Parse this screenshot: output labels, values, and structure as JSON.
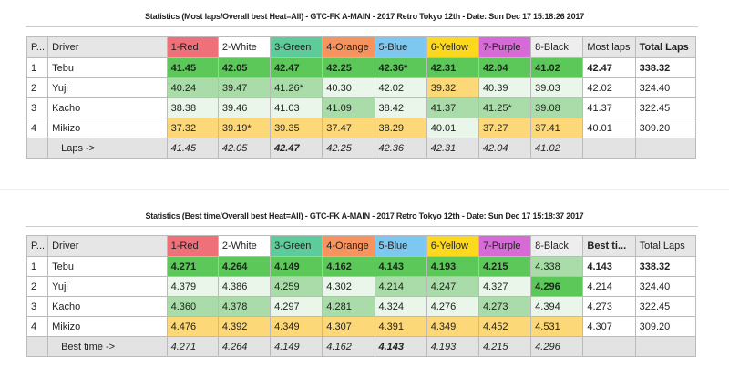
{
  "colors": {
    "red": "#f0707a",
    "white": "#ffffff",
    "green": "#5ecb9a",
    "orange": "#f7935e",
    "blue": "#7cc8f0",
    "yellow": "#fcd81e",
    "purple": "#d86ad8",
    "black": "#eeeeee"
  },
  "lanes": [
    "1-Red",
    "2-White",
    "3-Green",
    "4-Orange",
    "5-Blue",
    "6-Yellow",
    "7-Purple",
    "8-Black"
  ],
  "laneKeys": [
    "red",
    "white",
    "green",
    "orange",
    "blue",
    "yellow",
    "purple",
    "black"
  ],
  "tables": [
    {
      "title": "Statistics (Most laps/Overall best Heat=All) - GTC-FK A-MAIN - 2017 Retro Tokyo 12th - Date: Sun Dec 17 15:18:26 2017",
      "headers": {
        "pos": "P...",
        "driver": "Driver",
        "best": "Most laps",
        "total": "Total Laps"
      },
      "rows": [
        {
          "pos": "1",
          "driver": "Tebu",
          "cells": [
            "41.45",
            "42.05",
            "42.47",
            "42.25",
            "42.36*",
            "42.31",
            "42.04",
            "41.02"
          ],
          "shade": [
            "G",
            "G",
            "G",
            "G",
            "G",
            "G",
            "G",
            "G"
          ],
          "best": "42.47",
          "total": "338.32",
          "bold": true
        },
        {
          "pos": "2",
          "driver": "Yuji",
          "cells": [
            "40.24",
            "39.47",
            "41.26*",
            "40.30",
            "42.02",
            "39.32",
            "40.39",
            "39.03"
          ],
          "shade": [
            "m",
            "m",
            "m",
            "l",
            "l",
            "y",
            "l",
            "l"
          ],
          "best": "42.02",
          "total": "324.40"
        },
        {
          "pos": "3",
          "driver": "Kacho",
          "cells": [
            "38.38",
            "39.46",
            "41.03",
            "41.09",
            "38.42",
            "41.37",
            "41.25*",
            "39.08"
          ],
          "shade": [
            "l",
            "l",
            "l",
            "m",
            "l",
            "m",
            "m",
            "m"
          ],
          "best": "41.37",
          "total": "322.45"
        },
        {
          "pos": "4",
          "driver": "Mikizo",
          "cells": [
            "37.32",
            "39.19*",
            "39.35",
            "37.47",
            "38.29",
            "40.01",
            "37.27",
            "37.41"
          ],
          "shade": [
            "y",
            "y",
            "y",
            "y",
            "y",
            "l",
            "y",
            "y"
          ],
          "best": "40.01",
          "total": "309.20"
        }
      ],
      "footer": {
        "label": "Laps ->",
        "cells": [
          "41.45",
          "42.05",
          "42.47",
          "42.25",
          "42.36",
          "42.31",
          "42.04",
          "41.02"
        ],
        "boldIndex": 2
      },
      "totalBold": true,
      "bestBold": false
    },
    {
      "title": "Statistics (Best time/Overall best Heat=All) - GTC-FK A-MAIN - 2017 Retro Tokyo 12th - Date: Sun Dec 17 15:18:37 2017",
      "headers": {
        "pos": "P...",
        "driver": "Driver",
        "best": "Best ti...",
        "total": "Total Laps"
      },
      "rows": [
        {
          "pos": "1",
          "driver": "Tebu",
          "cells": [
            "4.271",
            "4.264",
            "4.149",
            "4.162",
            "4.143",
            "4.193",
            "4.215",
            "4.338"
          ],
          "shade": [
            "G",
            "G",
            "G",
            "G",
            "G",
            "G",
            "G",
            "m"
          ],
          "best": "4.143",
          "total": "338.32",
          "bold": true
        },
        {
          "pos": "2",
          "driver": "Yuji",
          "cells": [
            "4.379",
            "4.386",
            "4.259",
            "4.302",
            "4.214",
            "4.247",
            "4.327",
            "4.296"
          ],
          "shade": [
            "l",
            "l",
            "m",
            "l",
            "m",
            "m",
            "l",
            "G"
          ],
          "best": "4.214",
          "total": "324.40"
        },
        {
          "pos": "3",
          "driver": "Kacho",
          "cells": [
            "4.360",
            "4.378",
            "4.297",
            "4.281",
            "4.324",
            "4.276",
            "4.273",
            "4.394"
          ],
          "shade": [
            "m",
            "m",
            "l",
            "m",
            "l",
            "l",
            "m",
            "l"
          ],
          "best": "4.273",
          "total": "322.45"
        },
        {
          "pos": "4",
          "driver": "Mikizo",
          "cells": [
            "4.476",
            "4.392",
            "4.349",
            "4.307",
            "4.391",
            "4.349",
            "4.452",
            "4.531"
          ],
          "shade": [
            "y",
            "y",
            "y",
            "y",
            "y",
            "y",
            "y",
            "y"
          ],
          "best": "4.307",
          "total": "309.20"
        }
      ],
      "footer": {
        "label": "Best time ->",
        "cells": [
          "4.271",
          "4.264",
          "4.149",
          "4.162",
          "4.143",
          "4.193",
          "4.215",
          "4.296"
        ],
        "boldIndex": 4
      },
      "totalBold": false,
      "bestBold": true
    }
  ]
}
